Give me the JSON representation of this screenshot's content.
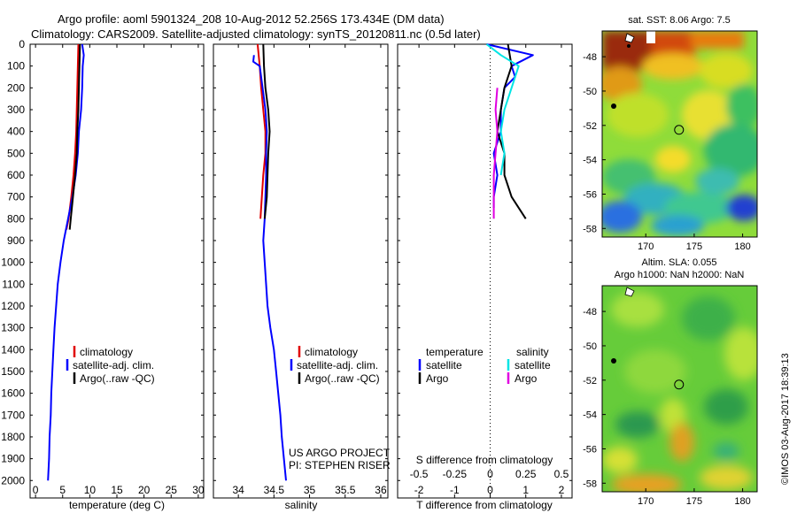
{
  "title_line1": "Argo profile: aoml 5901324_208 10-Aug-2012 52.256S 173.434E (DM data)",
  "title_line2": "Climatology: CARS2009. Satellite-adjusted climatology: synTS_20120811.nc (0.5d later)",
  "colors": {
    "climatology": "#e00000",
    "satellite": "#0000ff",
    "argo": "#000000",
    "sat_salinity": "#00e5e5",
    "argo_salinity": "#e000e0"
  },
  "credit": "©IMOS 03-Aug-2017 18:39:13",
  "project_line1": "US ARGO PROJECT",
  "project_line2": "PI: STEPHEN RISER",
  "chart_data": [
    {
      "type": "line",
      "xlabel": "temperature (deg C)",
      "ylabel": "",
      "xlim": [
        -1,
        31
      ],
      "ylim": [
        2080,
        0
      ],
      "xticks": [
        0,
        5,
        10,
        15,
        20,
        25,
        30
      ],
      "yticks": [
        0,
        100,
        200,
        300,
        400,
        500,
        600,
        700,
        800,
        900,
        1000,
        1100,
        1200,
        1300,
        1400,
        1500,
        1600,
        1700,
        1800,
        1900,
        2000
      ],
      "legend": "lower-middle",
      "series": [
        {
          "name": "climatology",
          "color": "red",
          "points": [
            [
              7.9,
              0
            ],
            [
              7.8,
              100
            ],
            [
              7.7,
              200
            ],
            [
              7.6,
              300
            ],
            [
              7.5,
              400
            ],
            [
              7.3,
              500
            ],
            [
              7.0,
              600
            ],
            [
              6.6,
              700
            ],
            [
              6.1,
              800
            ],
            [
              5.7,
              850
            ]
          ]
        },
        {
          "name": "satellite-adj. clim.",
          "color": "blue",
          "points": [
            [
              8.6,
              0
            ],
            [
              8.9,
              50
            ],
            [
              8.7,
              100
            ],
            [
              8.6,
              200
            ],
            [
              8.4,
              300
            ],
            [
              8.0,
              400
            ],
            [
              7.8,
              500
            ],
            [
              7.4,
              600
            ],
            [
              6.8,
              700
            ],
            [
              6.0,
              800
            ],
            [
              5.2,
              900
            ],
            [
              4.6,
              1000
            ],
            [
              4.1,
              1100
            ],
            [
              3.8,
              1200
            ],
            [
              3.5,
              1300
            ],
            [
              3.3,
              1400
            ],
            [
              3.1,
              1500
            ],
            [
              2.9,
              1600
            ],
            [
              2.8,
              1700
            ],
            [
              2.6,
              1800
            ],
            [
              2.5,
              1900
            ],
            [
              2.3,
              2000
            ]
          ]
        },
        {
          "name": "Argo(..raw -QC)",
          "color": "black",
          "points": [
            [
              8.2,
              0
            ],
            [
              8.1,
              100
            ],
            [
              8.0,
              200
            ],
            [
              7.9,
              300
            ],
            [
              7.7,
              400
            ],
            [
              7.6,
              500
            ],
            [
              7.3,
              600
            ],
            [
              6.9,
              700
            ],
            [
              6.5,
              800
            ],
            [
              6.3,
              850
            ]
          ]
        }
      ],
      "legend_entries": [
        "climatology",
        "satellite-adj. clim.",
        "Argo(..raw -QC)"
      ]
    },
    {
      "type": "line",
      "xlabel": "salinity",
      "ylabel": "",
      "xlim": [
        33.65,
        36.1
      ],
      "ylim": [
        2080,
        0
      ],
      "xticks": [
        34,
        34.5,
        35,
        35.5,
        36
      ],
      "legend": "lower-middle",
      "series": [
        {
          "name": "climatology",
          "color": "red",
          "points": [
            [
              34.27,
              0
            ],
            [
              34.3,
              100
            ],
            [
              34.32,
              200
            ],
            [
              34.35,
              300
            ],
            [
              34.38,
              400
            ],
            [
              34.38,
              500
            ],
            [
              34.35,
              600
            ],
            [
              34.33,
              700
            ],
            [
              34.31,
              800
            ]
          ]
        },
        {
          "name": "satellite-adj. clim.",
          "color": "blue",
          "points": [
            [
              34.22,
              50
            ],
            [
              34.21,
              80
            ],
            [
              34.3,
              100
            ],
            [
              34.34,
              200
            ],
            [
              34.38,
              300
            ],
            [
              34.4,
              400
            ],
            [
              34.39,
              500
            ],
            [
              34.39,
              600
            ],
            [
              34.38,
              700
            ],
            [
              34.37,
              800
            ],
            [
              34.35,
              900
            ],
            [
              34.37,
              1000
            ],
            [
              34.39,
              1100
            ],
            [
              34.41,
              1200
            ],
            [
              34.45,
              1300
            ],
            [
              34.5,
              1400
            ],
            [
              34.53,
              1500
            ],
            [
              34.56,
              1600
            ],
            [
              34.59,
              1700
            ],
            [
              34.61,
              1800
            ],
            [
              34.64,
              1900
            ],
            [
              34.67,
              2000
            ]
          ]
        },
        {
          "name": "Argo(..raw -QC)",
          "color": "black",
          "points": [
            [
              34.35,
              0
            ],
            [
              34.36,
              100
            ],
            [
              34.38,
              200
            ],
            [
              34.42,
              300
            ],
            [
              34.44,
              400
            ],
            [
              34.42,
              500
            ],
            [
              34.41,
              600
            ],
            [
              34.4,
              700
            ],
            [
              34.37,
              800
            ]
          ]
        }
      ],
      "legend_entries": [
        "climatology",
        "satellite-adj. clim.",
        "Argo(..raw -QC)"
      ]
    },
    {
      "type": "line",
      "xlabel": "T difference from climatology",
      "xlabel_top": "S difference from climatology",
      "xlim": [
        -2.6,
        2.3
      ],
      "ylim": [
        2080,
        0
      ],
      "xticks": [
        -2,
        -1,
        0,
        1,
        2
      ],
      "xticks_s": [
        "-0.5",
        "-0.25",
        "0",
        "0.25",
        "0.5"
      ],
      "legend": "lower",
      "legend_headers": [
        "temperature",
        "salinity"
      ],
      "series": [
        {
          "name": "temperature satellite",
          "color": "blue",
          "points": [
            [
              -0.1,
              0
            ],
            [
              1.2,
              50
            ],
            [
              0.6,
              100
            ],
            [
              0.7,
              150
            ],
            [
              0.4,
              200
            ],
            [
              0.3,
              300
            ],
            [
              0.3,
              400
            ],
            [
              0.1,
              500
            ],
            [
              0.2,
              600
            ],
            [
              0.1,
              700
            ],
            [
              0.1,
              750
            ]
          ]
        },
        {
          "name": "temperature Argo",
          "color": "black",
          "points": [
            [
              0.5,
              0
            ],
            [
              0.6,
              100
            ],
            [
              0.4,
              200
            ],
            [
              0.3,
              300
            ],
            [
              0.2,
              400
            ],
            [
              0.4,
              500
            ],
            [
              0.4,
              600
            ],
            [
              0.6,
              700
            ],
            [
              1.0,
              800
            ]
          ]
        },
        {
          "name": "salinity satellite",
          "color": "cyan",
          "points": [
            [
              -0.1,
              0
            ],
            [
              0.3,
              50
            ],
            [
              0.8,
              100
            ],
            [
              0.6,
              200
            ],
            [
              0.4,
              300
            ],
            [
              0.3,
              400
            ],
            [
              0.4,
              500
            ],
            [
              0.3,
              600
            ]
          ]
        },
        {
          "name": "salinity Argo",
          "color": "magenta",
          "points": [
            [
              0.2,
              200
            ],
            [
              0.15,
              300
            ],
            [
              0.2,
              400
            ],
            [
              0.15,
              500
            ],
            [
              0.1,
              600
            ],
            [
              0.1,
              700
            ],
            [
              0.1,
              800
            ]
          ]
        }
      ],
      "legend_entries": [
        "satellite",
        "Argo",
        "satellite",
        "Argo"
      ]
    },
    {
      "type": "heatmap",
      "title": "sat. SST: 8.06 Argo: 7.5",
      "xticks": [
        170,
        175,
        180
      ],
      "yticks": [
        -48,
        -50,
        -52,
        -54,
        -56,
        -58
      ],
      "xlim": [
        165.5,
        181.5
      ],
      "ylim": [
        -58.5,
        -46.5
      ],
      "marker": {
        "lon": 173.434,
        "lat": -52.256
      }
    },
    {
      "type": "heatmap",
      "title_line1": "Altim. SLA: 0.055",
      "title_line2": "Argo h1000: NaN h2000: NaN",
      "xticks": [
        170,
        175,
        180
      ],
      "yticks": [
        -48,
        -50,
        -52,
        -54,
        -56,
        -58
      ],
      "xlim": [
        165.5,
        181.5
      ],
      "ylim": [
        -58.5,
        -46.5
      ],
      "marker": {
        "lon": 173.434,
        "lat": -52.256
      }
    }
  ]
}
